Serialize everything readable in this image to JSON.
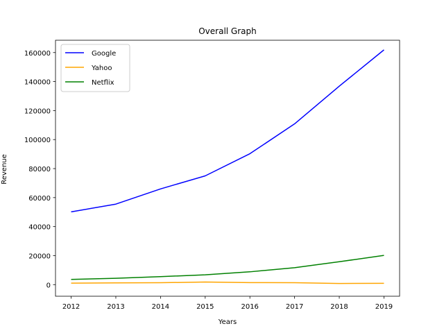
{
  "chart_data": {
    "type": "line",
    "title": "Overall Graph",
    "xlabel": "Years",
    "ylabel": "Revenue",
    "x": [
      2012,
      2013,
      2014,
      2015,
      2016,
      2017,
      2018,
      2019
    ],
    "xlim": [
      2011.65,
      2019.35
    ],
    "ylim": [
      -8000,
      168500
    ],
    "yticks": [
      0,
      20000,
      40000,
      60000,
      80000,
      100000,
      120000,
      140000,
      160000
    ],
    "grid": false,
    "legend_position": "top-left",
    "series": [
      {
        "name": "Google",
        "color": "#0000ff",
        "values": [
          50175,
          55519,
          66001,
          74989,
          90272,
          110855,
          136819,
          161857
        ]
      },
      {
        "name": "Yahoo",
        "color": "#ffa500",
        "values": [
          1000,
          1200,
          1300,
          1800,
          1400,
          1300,
          800,
          900
        ]
      },
      {
        "name": "Netflix",
        "color": "#008000",
        "values": [
          3609,
          4375,
          5505,
          6780,
          8831,
          11693,
          15794,
          20156
        ]
      }
    ]
  }
}
